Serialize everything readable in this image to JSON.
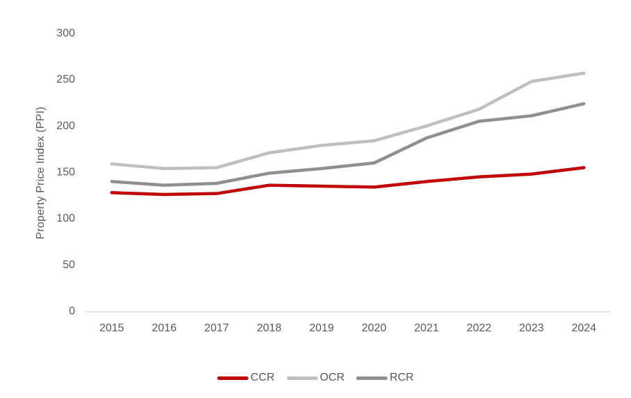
{
  "chart_data": {
    "type": "line",
    "title": "",
    "ylabel": "Property Price Index (PPI)",
    "xlabel": "",
    "categories": [
      "2015",
      "2016",
      "2017",
      "2018",
      "2019",
      "2020",
      "2021",
      "2022",
      "2023",
      "2024"
    ],
    "series": [
      {
        "name": "OCR",
        "color": "#BFBFBF",
        "values": [
          159,
          154,
          155,
          171,
          179,
          184,
          200,
          218,
          248,
          257
        ]
      },
      {
        "name": "RCR",
        "color": "#8F8F8F",
        "values": [
          140,
          136,
          138,
          149,
          154,
          160,
          187,
          205,
          211,
          224
        ]
      },
      {
        "name": "CCR",
        "color": "#C00000",
        "values": [
          128,
          126,
          127,
          136,
          135,
          134,
          140,
          145,
          148,
          155
        ]
      }
    ],
    "ylim": [
      0,
      300
    ],
    "yticks": [
      0,
      50,
      100,
      150,
      200,
      250,
      300
    ],
    "grid": false,
    "legend_position": "bottom"
  },
  "legend": {
    "items": [
      {
        "label": "CCR",
        "color": "#C00000"
      },
      {
        "label": "OCR",
        "color": "#BFBFBF"
      },
      {
        "label": "RCR",
        "color": "#8F8F8F"
      }
    ]
  },
  "colors": {
    "text": "#595959",
    "axis_line": "#D9D9D9",
    "background": "#FFFFFF"
  }
}
